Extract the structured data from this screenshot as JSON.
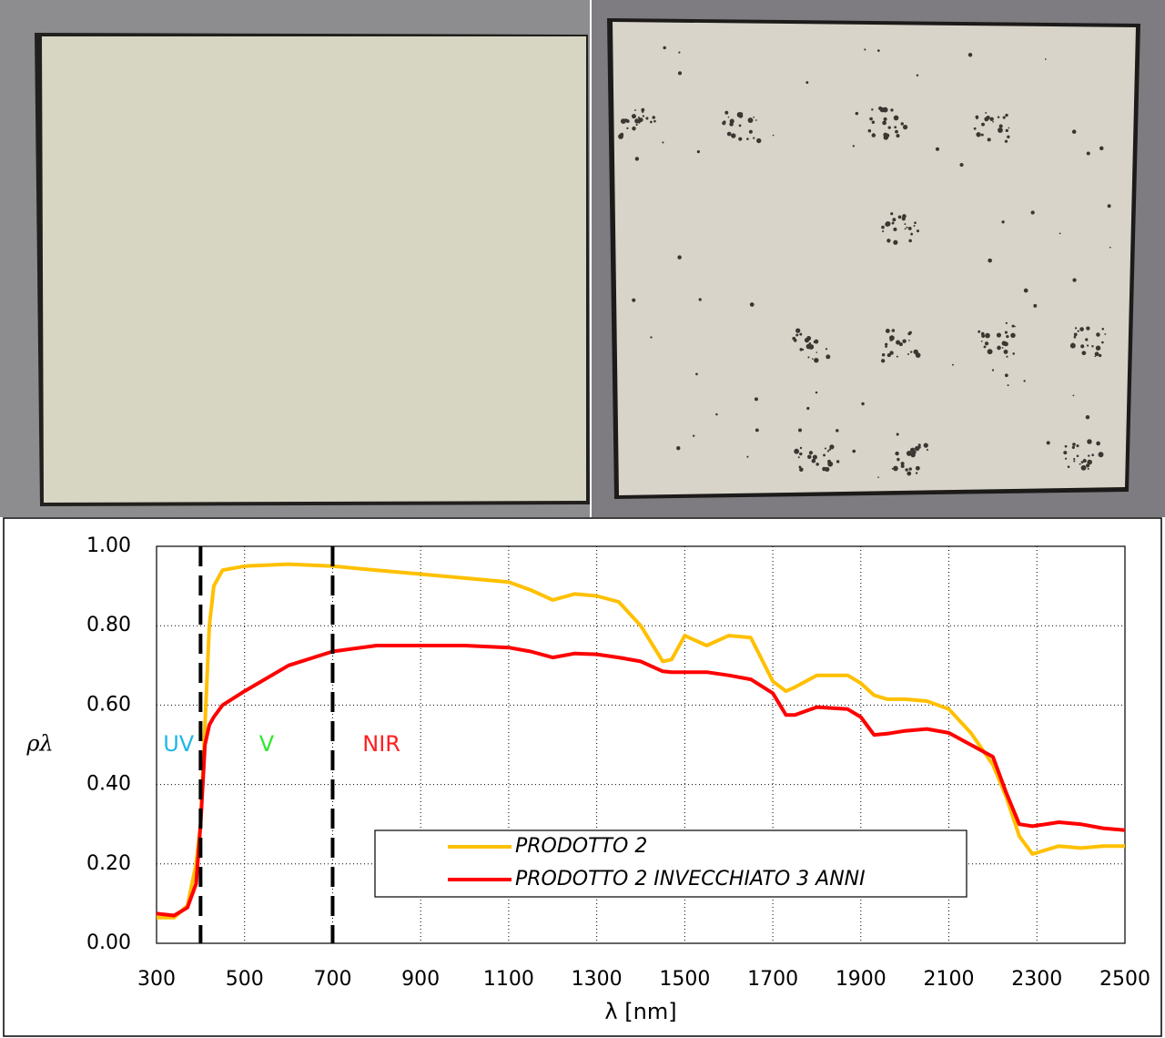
{
  "chart_data": {
    "type": "line",
    "x_label": "λ  [nm]",
    "y_label": "ρλ",
    "xlim": [
      300,
      2500
    ],
    "ylim": [
      0,
      1
    ],
    "xticks": [
      300,
      500,
      700,
      900,
      1100,
      1300,
      1500,
      1700,
      1900,
      2100,
      2300,
      2500
    ],
    "yticks": [
      {
        "value": 0,
        "label": "0.00"
      },
      {
        "value": 0.2,
        "label": "0.20"
      },
      {
        "value": 0.4,
        "label": "0.40"
      },
      {
        "value": 0.6,
        "label": "0.60"
      },
      {
        "value": 0.8,
        "label": "0.80"
      },
      {
        "value": 1,
        "label": "1.00"
      }
    ],
    "grid": true,
    "region_lines": [
      400,
      700
    ],
    "regions": [
      {
        "text": "UV",
        "color": "#1fb6e6"
      },
      {
        "text": "V",
        "color": "#2ee82e"
      },
      {
        "text": "NIR",
        "color": "#ff2020"
      }
    ],
    "x": [
      300,
      340,
      370,
      390,
      400,
      410,
      420,
      430,
      450,
      500,
      600,
      700,
      800,
      900,
      1000,
      1100,
      1150,
      1200,
      1250,
      1300,
      1350,
      1400,
      1450,
      1470,
      1500,
      1550,
      1600,
      1650,
      1700,
      1730,
      1750,
      1800,
      1870,
      1900,
      1930,
      1960,
      2000,
      2050,
      2100,
      2150,
      2200,
      2230,
      2260,
      2290,
      2350,
      2400,
      2450,
      2500
    ],
    "series": [
      {
        "name": "PRODOTTO 2",
        "color": "#ffc000",
        "values": [
          0.065,
          0.065,
          0.095,
          0.2,
          0.3,
          0.55,
          0.8,
          0.9,
          0.94,
          0.95,
          0.955,
          0.95,
          0.94,
          0.93,
          0.92,
          0.91,
          0.89,
          0.865,
          0.88,
          0.875,
          0.86,
          0.8,
          0.71,
          0.715,
          0.775,
          0.75,
          0.775,
          0.77,
          0.66,
          0.635,
          0.645,
          0.675,
          0.675,
          0.655,
          0.625,
          0.615,
          0.615,
          0.61,
          0.59,
          0.53,
          0.45,
          0.37,
          0.27,
          0.225,
          0.245,
          0.24,
          0.245,
          0.245
        ]
      },
      {
        "name": "PRODOTTO 2 INVECCHIATO 3 ANNI",
        "color": "#ff0000",
        "values": [
          0.075,
          0.07,
          0.09,
          0.15,
          0.3,
          0.5,
          0.55,
          0.57,
          0.6,
          0.635,
          0.7,
          0.735,
          0.75,
          0.75,
          0.75,
          0.745,
          0.735,
          0.72,
          0.73,
          0.728,
          0.72,
          0.71,
          0.685,
          0.683,
          0.683,
          0.683,
          0.675,
          0.665,
          0.63,
          0.575,
          0.575,
          0.595,
          0.59,
          0.57,
          0.525,
          0.528,
          0.535,
          0.54,
          0.53,
          0.5,
          0.47,
          0.38,
          0.3,
          0.295,
          0.305,
          0.3,
          0.29,
          0.285
        ]
      }
    ]
  }
}
